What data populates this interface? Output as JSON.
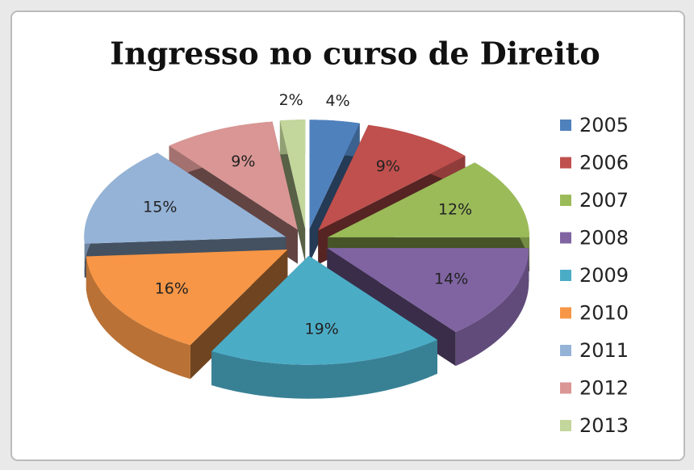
{
  "chart_data": {
    "type": "pie3d",
    "title": "Ingresso no curso de Direito",
    "categories": [
      "2005",
      "2006",
      "2007",
      "2008",
      "2009",
      "2010",
      "2011",
      "2012",
      "2013"
    ],
    "values": [
      4,
      9,
      12,
      14,
      19,
      16,
      15,
      9,
      2
    ],
    "value_labels": [
      "4%",
      "9%",
      "12%",
      "14%",
      "19%",
      "16%",
      "15%",
      "9%",
      "2%"
    ],
    "colors": [
      "#4f81bd",
      "#c0504d",
      "#9bbb59",
      "#8064a2",
      "#4bacc6",
      "#f79646",
      "#95b3d7",
      "#d99694",
      "#c3d69b"
    ],
    "legend": "right"
  }
}
